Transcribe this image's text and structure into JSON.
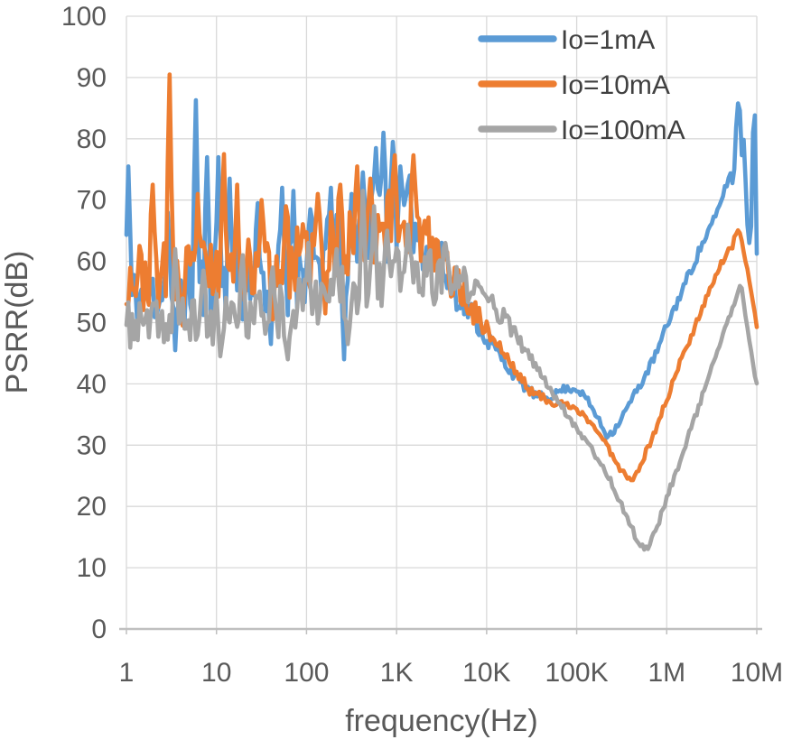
{
  "chart_data": {
    "type": "line",
    "title": "",
    "xlabel": "frequency(Hz)",
    "ylabel": "PSRR(dB)",
    "x_scale": "log10",
    "x_unit": "Hz",
    "y_unit": "dB",
    "x_range_log10": [
      0,
      7
    ],
    "x_tick_labels": [
      "1",
      "10",
      "100",
      "1K",
      "10K",
      "100K",
      "1M",
      "10M"
    ],
    "y_ticks": [
      0,
      10,
      20,
      30,
      40,
      50,
      60,
      70,
      80,
      90,
      100
    ],
    "ylim": [
      0,
      100
    ],
    "grid": true,
    "grid_color": "#D9D9D9",
    "axis_line_color": "#BFBFBF",
    "tick_label_color": "#595959",
    "legend_label_color": "#404040",
    "legend_position": "inside-top-right",
    "points_per_decade": 48,
    "series": [
      {
        "name": "Io=1mA",
        "color": "#5B9BD5",
        "noise_seed": 11,
        "trend": [
          [
            0,
            53
          ],
          [
            0.3,
            55
          ],
          [
            0.7,
            55.5
          ],
          [
            1.1,
            56
          ],
          [
            1.5,
            56.5
          ],
          [
            1.9,
            58
          ],
          [
            2.2,
            60
          ],
          [
            2.5,
            63
          ],
          [
            2.8,
            66
          ],
          [
            3.0,
            67.5
          ],
          [
            3.15,
            66
          ],
          [
            3.3,
            63.5
          ],
          [
            3.5,
            59
          ],
          [
            3.7,
            54.5
          ],
          [
            3.9,
            50
          ],
          [
            4.0,
            47.5
          ],
          [
            4.1,
            45.5
          ],
          [
            4.25,
            42.5
          ],
          [
            4.4,
            39.8
          ],
          [
            4.55,
            38
          ],
          [
            4.7,
            37.8
          ],
          [
            4.85,
            39.2
          ],
          [
            5.0,
            39.2
          ],
          [
            5.1,
            37.8
          ],
          [
            5.22,
            34.8
          ],
          [
            5.33,
            31.6
          ],
          [
            5.42,
            32.5
          ],
          [
            5.55,
            35.8
          ],
          [
            5.65,
            38.5
          ],
          [
            5.75,
            41
          ],
          [
            5.9,
            45.5
          ],
          [
            6.0,
            49.5
          ],
          [
            6.1,
            52.8
          ],
          [
            6.25,
            58
          ],
          [
            6.4,
            63
          ],
          [
            6.55,
            67.5
          ],
          [
            6.65,
            72
          ],
          [
            6.71,
            74.5
          ],
          [
            6.74,
            71.5
          ],
          [
            6.77,
            82
          ],
          [
            6.8,
            87
          ],
          [
            6.82,
            83.5
          ],
          [
            6.84,
            74.5
          ],
          [
            6.86,
            82.5
          ],
          [
            6.88,
            70
          ],
          [
            6.91,
            62.5
          ],
          [
            6.94,
            66
          ],
          [
            6.965,
            86.5
          ],
          [
            6.985,
            83
          ],
          [
            7.0,
            61.5
          ]
        ],
        "noise_amp": [
          [
            0,
            6
          ],
          [
            2.9,
            6.8
          ],
          [
            3.3,
            5.5
          ],
          [
            3.7,
            3
          ],
          [
            4.0,
            1.6
          ],
          [
            4.3,
            0.9
          ],
          [
            4.8,
            0.6
          ],
          [
            5.5,
            0.6
          ],
          [
            6.3,
            0.9
          ],
          [
            6.75,
            0.5
          ],
          [
            7,
            0.3
          ]
        ],
        "spikes": [
          [
            0.03,
            75.5
          ],
          [
            0.45,
            68
          ],
          [
            0.78,
            86.3
          ],
          [
            0.9,
            77
          ],
          [
            1.02,
            77
          ],
          [
            1.15,
            73.5
          ],
          [
            1.45,
            69.5
          ],
          [
            1.72,
            72
          ],
          [
            1.85,
            71.5
          ],
          [
            2.05,
            68.5
          ],
          [
            2.27,
            72
          ],
          [
            2.5,
            71
          ],
          [
            2.63,
            74.5
          ],
          [
            2.77,
            78.5
          ],
          [
            2.86,
            81
          ],
          [
            2.95,
            79.5
          ],
          [
            3.05,
            75.5
          ],
          [
            3.15,
            74
          ],
          [
            0.55,
            45.5
          ],
          [
            1.6,
            46.5
          ],
          [
            2.42,
            44
          ]
        ]
      },
      {
        "name": "Io=10mA",
        "color": "#ED7D31",
        "noise_seed": 23,
        "trend": [
          [
            0,
            57.5
          ],
          [
            0.4,
            57.5
          ],
          [
            0.9,
            58
          ],
          [
            1.4,
            58.5
          ],
          [
            1.9,
            60
          ],
          [
            2.3,
            62.5
          ],
          [
            2.6,
            65
          ],
          [
            2.9,
            66.5
          ],
          [
            3.1,
            66
          ],
          [
            3.3,
            63.5
          ],
          [
            3.5,
            60
          ],
          [
            3.7,
            55.5
          ],
          [
            3.9,
            51
          ],
          [
            4.0,
            49
          ],
          [
            4.1,
            47
          ],
          [
            4.3,
            42.5
          ],
          [
            4.5,
            38.6
          ],
          [
            4.7,
            37.3
          ],
          [
            4.9,
            36.3
          ],
          [
            5.05,
            35.3
          ],
          [
            5.2,
            33
          ],
          [
            5.35,
            29.5
          ],
          [
            5.5,
            25.8
          ],
          [
            5.6,
            24.3
          ],
          [
            5.7,
            26.5
          ],
          [
            5.85,
            31.5
          ],
          [
            6.0,
            37.5
          ],
          [
            6.15,
            43.5
          ],
          [
            6.3,
            49
          ],
          [
            6.45,
            54.5
          ],
          [
            6.6,
            59.5
          ],
          [
            6.68,
            61.5
          ],
          [
            6.73,
            62.5
          ],
          [
            6.78,
            65.3
          ],
          [
            6.82,
            64.5
          ],
          [
            6.87,
            60.5
          ],
          [
            6.92,
            56.5
          ],
          [
            6.96,
            52.8
          ],
          [
            7.0,
            49.5
          ]
        ],
        "noise_amp": [
          [
            0,
            5.5
          ],
          [
            2.9,
            6.2
          ],
          [
            3.3,
            5
          ],
          [
            3.7,
            3
          ],
          [
            4.0,
            1.6
          ],
          [
            4.4,
            0.8
          ],
          [
            5.2,
            0.5
          ],
          [
            6.3,
            0.7
          ],
          [
            7,
            0.3
          ]
        ],
        "spikes": [
          [
            0.3,
            72.5
          ],
          [
            0.48,
            90.5
          ],
          [
            0.8,
            71
          ],
          [
            1.08,
            77.5
          ],
          [
            1.22,
            72.5
          ],
          [
            1.5,
            70
          ],
          [
            1.78,
            69
          ],
          [
            2.12,
            71
          ],
          [
            2.38,
            72.5
          ],
          [
            2.56,
            75.5
          ],
          [
            2.7,
            73.5
          ],
          [
            2.98,
            77.3
          ],
          [
            3.18,
            77.3
          ],
          [
            0.62,
            49.5
          ],
          [
            1.62,
            50.5
          ],
          [
            2.2,
            51.5
          ]
        ]
      },
      {
        "name": "Io=100mA",
        "color": "#A5A5A5",
        "noise_seed": 37,
        "trend": [
          [
            0,
            49.5
          ],
          [
            0.5,
            50
          ],
          [
            1.0,
            50.5
          ],
          [
            1.5,
            51.5
          ],
          [
            2.0,
            53
          ],
          [
            2.4,
            55.5
          ],
          [
            2.7,
            57
          ],
          [
            3.0,
            58
          ],
          [
            3.3,
            57.5
          ],
          [
            3.6,
            57
          ],
          [
            3.85,
            55.5
          ],
          [
            4.05,
            53.5
          ],
          [
            4.25,
            49.5
          ],
          [
            4.45,
            45
          ],
          [
            4.65,
            40.5
          ],
          [
            4.85,
            36
          ],
          [
            5.0,
            32.8
          ],
          [
            5.15,
            29.8
          ],
          [
            5.35,
            25
          ],
          [
            5.55,
            18.5
          ],
          [
            5.68,
            14.2
          ],
          [
            5.77,
            13
          ],
          [
            5.88,
            16
          ],
          [
            6.0,
            21.5
          ],
          [
            6.15,
            27.5
          ],
          [
            6.3,
            34
          ],
          [
            6.45,
            40.5
          ],
          [
            6.6,
            47
          ],
          [
            6.7,
            51
          ],
          [
            6.78,
            54.5
          ],
          [
            6.83,
            56.3
          ],
          [
            6.87,
            51.5
          ],
          [
            6.91,
            47.5
          ],
          [
            6.96,
            43
          ],
          [
            7.0,
            39.8
          ]
        ],
        "noise_amp": [
          [
            0,
            3.8
          ],
          [
            2.8,
            5
          ],
          [
            3.4,
            4.5
          ],
          [
            3.8,
            3
          ],
          [
            4.1,
            1.8
          ],
          [
            4.5,
            0.8
          ],
          [
            5.2,
            0.5
          ],
          [
            6.3,
            0.6
          ],
          [
            7,
            0.3
          ]
        ],
        "spikes": [
          [
            0.55,
            62
          ],
          [
            0.85,
            58.5
          ],
          [
            1.3,
            61
          ],
          [
            1.62,
            59
          ],
          [
            2.02,
            63
          ],
          [
            2.33,
            62
          ],
          [
            2.62,
            71.5
          ],
          [
            2.74,
            69
          ],
          [
            2.9,
            65
          ],
          [
            3.12,
            66
          ],
          [
            3.55,
            63
          ],
          [
            1.05,
            44.5
          ],
          [
            1.8,
            44
          ],
          [
            2.46,
            46.5
          ]
        ]
      }
    ]
  }
}
